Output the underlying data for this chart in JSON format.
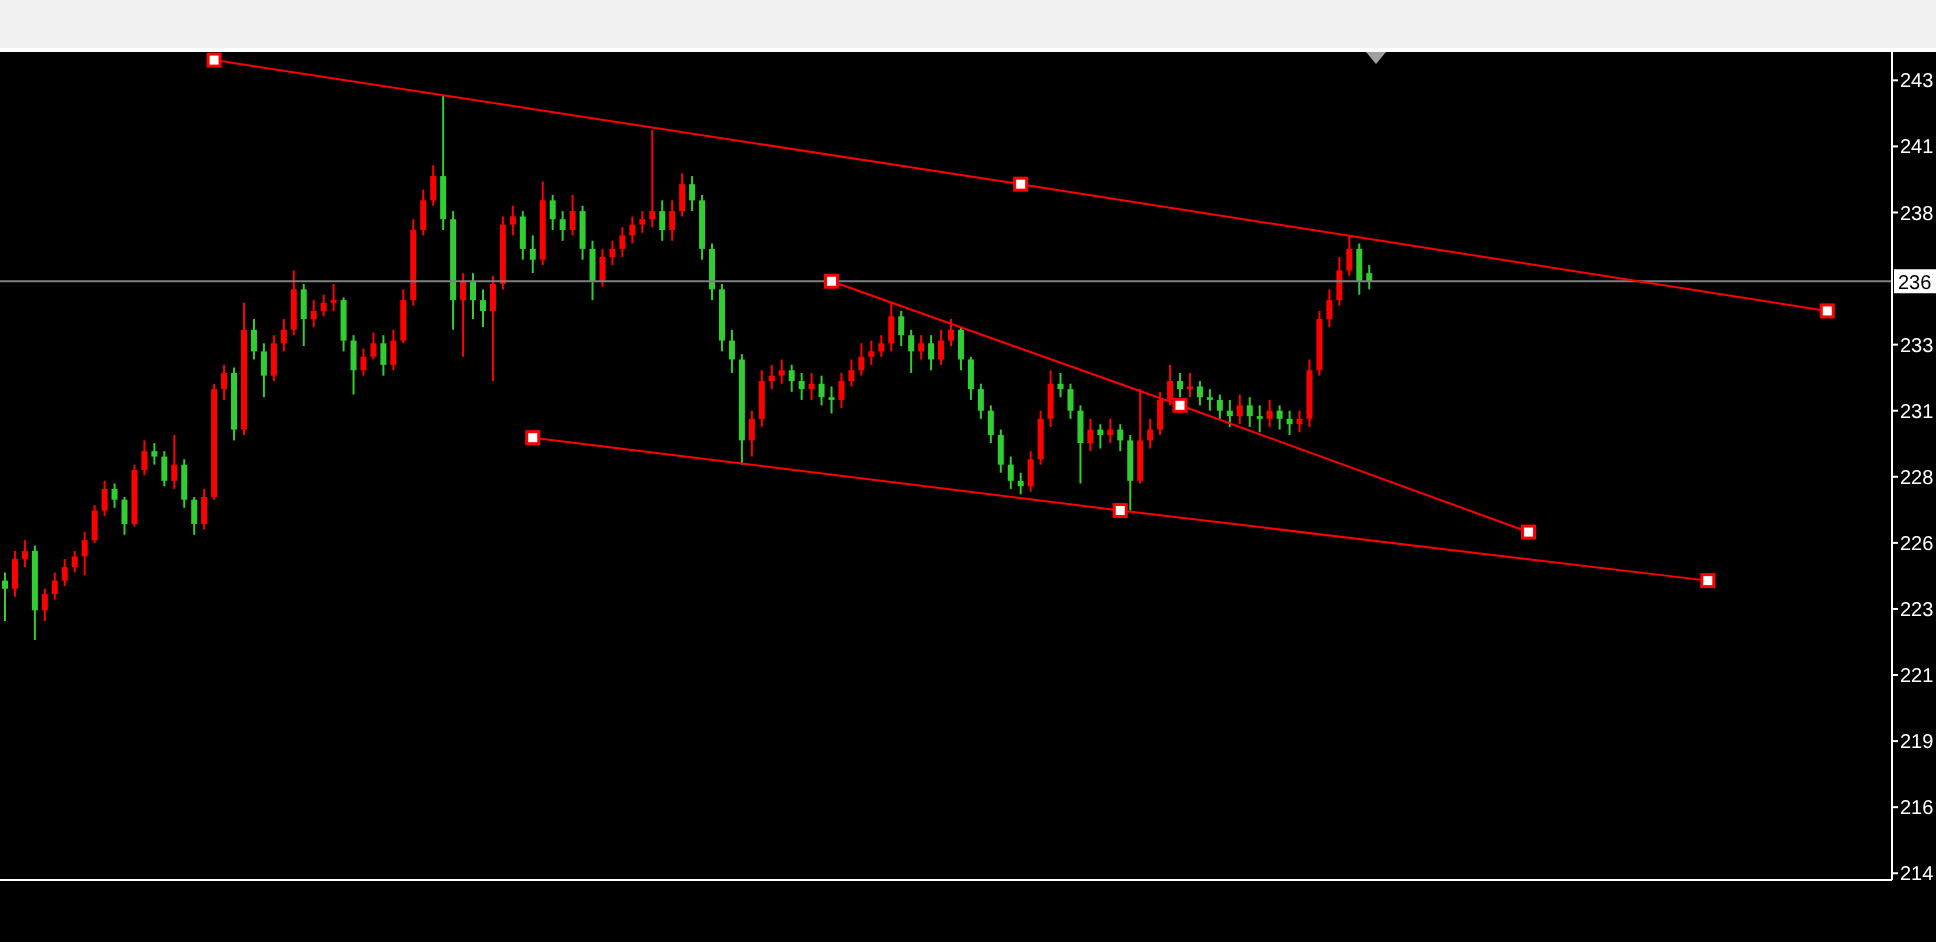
{
  "chart_data": {
    "type": "candlestick",
    "categories": [
      null,
      null,
      null,
      null,
      null,
      null,
      null,
      null,
      null,
      null,
      null,
      null,
      null,
      null,
      null,
      null,
      null,
      null,
      null,
      null,
      null,
      null,
      null,
      null,
      null,
      null,
      null,
      null,
      null,
      null,
      null,
      null,
      null,
      null,
      null,
      null,
      null,
      null,
      null,
      null,
      null,
      null,
      null,
      null,
      null,
      null,
      null,
      null,
      null,
      null,
      null,
      null,
      null,
      null,
      null,
      null,
      null,
      null,
      null,
      null,
      null,
      null,
      null,
      null,
      null,
      null,
      null,
      null,
      null,
      null,
      null,
      null,
      null,
      null,
      null,
      null,
      null,
      null,
      null,
      null,
      null,
      null,
      null,
      null,
      null,
      null,
      null,
      null,
      null,
      null,
      null,
      null,
      null,
      null,
      null,
      null,
      null,
      null,
      null,
      null,
      null,
      null,
      null,
      null,
      null,
      null,
      null,
      null,
      null,
      null,
      null,
      null,
      null,
      null,
      null,
      null,
      null,
      null,
      null,
      null,
      null,
      null,
      null,
      null,
      null,
      null,
      null,
      null,
      null,
      null,
      null,
      null,
      null,
      null,
      null,
      null,
      null,
      null,
      null,
      null,
      null,
      null,
      null,
      null,
      null,
      null,
      null,
      null,
      null,
      null,
      null,
      null,
      null,
      null,
      null,
      null,
      null,
      null,
      null,
      null,
      null,
      null,
      null,
      null,
      null,
      null,
      null,
      null,
      null,
      null,
      null,
      null,
      null,
      null,
      null,
      null,
      null,
      null,
      null,
      null,
      null,
      null,
      null,
      null,
      null,
      null,
      null,
      null,
      null,
      null
    ],
    "ohlc": [
      [
        224.5,
        224.8,
        223.0,
        224.2
      ],
      [
        224.2,
        225.6,
        223.9,
        225.3
      ],
      [
        225.3,
        226.0,
        225.0,
        225.6
      ],
      [
        225.6,
        225.8,
        222.3,
        223.4
      ],
      [
        223.4,
        224.2,
        223.0,
        224.0
      ],
      [
        224.0,
        224.8,
        223.8,
        224.5
      ],
      [
        224.5,
        225.3,
        224.3,
        225.0
      ],
      [
        225.0,
        225.6,
        224.8,
        225.4
      ],
      [
        225.4,
        226.3,
        224.7,
        226.0
      ],
      [
        226.0,
        227.3,
        225.9,
        227.1
      ],
      [
        227.1,
        228.2,
        226.9,
        227.9
      ],
      [
        227.9,
        228.1,
        227.2,
        227.5
      ],
      [
        227.5,
        227.6,
        226.2,
        226.6
      ],
      [
        226.6,
        228.8,
        226.5,
        228.6
      ],
      [
        228.6,
        229.7,
        228.4,
        229.3
      ],
      [
        229.3,
        229.6,
        228.8,
        229.1
      ],
      [
        229.1,
        229.3,
        228.0,
        228.2
      ],
      [
        228.2,
        229.9,
        227.9,
        228.8
      ],
      [
        228.8,
        229.0,
        227.2,
        227.5
      ],
      [
        227.5,
        227.6,
        226.2,
        226.6
      ],
      [
        226.6,
        227.9,
        226.4,
        227.6
      ],
      [
        227.6,
        231.8,
        227.5,
        231.6
      ],
      [
        231.6,
        232.5,
        231.2,
        232.2
      ],
      [
        232.2,
        232.4,
        229.7,
        230.1
      ],
      [
        230.1,
        234.8,
        229.9,
        233.8
      ],
      [
        233.8,
        234.2,
        232.7,
        233.0
      ],
      [
        233.0,
        233.3,
        231.3,
        232.1
      ],
      [
        232.1,
        233.6,
        231.9,
        233.3
      ],
      [
        233.3,
        234.2,
        233.0,
        233.8
      ],
      [
        233.8,
        236.0,
        233.6,
        235.3
      ],
      [
        235.3,
        235.5,
        233.2,
        234.2
      ],
      [
        234.2,
        234.9,
        233.9,
        234.5
      ],
      [
        234.5,
        235.1,
        234.3,
        234.8
      ],
      [
        234.8,
        235.5,
        234.5,
        234.9
      ],
      [
        234.9,
        235.0,
        233.0,
        233.4
      ],
      [
        233.4,
        233.6,
        231.4,
        232.3
      ],
      [
        232.3,
        233.1,
        232.1,
        232.8
      ],
      [
        232.8,
        233.7,
        232.7,
        233.3
      ],
      [
        233.3,
        233.6,
        232.1,
        232.5
      ],
      [
        232.5,
        233.8,
        232.3,
        233.4
      ],
      [
        233.4,
        235.3,
        233.3,
        234.9
      ],
      [
        234.9,
        237.9,
        234.7,
        237.5
      ],
      [
        237.5,
        239.0,
        237.3,
        238.6
      ],
      [
        238.6,
        239.9,
        238.4,
        239.5
      ],
      [
        239.5,
        242.5,
        237.5,
        237.9
      ],
      [
        237.9,
        238.2,
        233.8,
        234.9
      ],
      [
        234.9,
        235.9,
        232.8,
        235.6
      ],
      [
        235.6,
        235.9,
        234.2,
        234.9
      ],
      [
        234.9,
        235.3,
        233.9,
        234.5
      ],
      [
        234.5,
        235.8,
        231.9,
        235.5
      ],
      [
        235.5,
        238.0,
        235.3,
        237.7
      ],
      [
        237.7,
        238.4,
        237.3,
        238.0
      ],
      [
        238.0,
        238.2,
        236.4,
        236.8
      ],
      [
        236.8,
        237.3,
        235.9,
        236.4
      ],
      [
        236.4,
        239.3,
        236.2,
        238.6
      ],
      [
        238.6,
        238.8,
        237.5,
        237.9
      ],
      [
        237.9,
        238.2,
        237.1,
        237.5
      ],
      [
        237.5,
        238.8,
        237.3,
        238.2
      ],
      [
        238.2,
        238.4,
        236.4,
        236.8
      ],
      [
        236.8,
        237.1,
        234.9,
        235.6
      ],
      [
        235.6,
        236.8,
        235.4,
        236.5
      ],
      [
        236.5,
        237.1,
        236.2,
        236.8
      ],
      [
        236.8,
        237.6,
        236.5,
        237.3
      ],
      [
        237.3,
        238.0,
        237.0,
        237.7
      ],
      [
        237.7,
        238.2,
        237.4,
        237.9
      ],
      [
        237.9,
        241.2,
        237.6,
        238.2
      ],
      [
        238.2,
        238.6,
        237.1,
        237.5
      ],
      [
        237.5,
        238.6,
        237.1,
        238.2
      ],
      [
        238.2,
        239.6,
        238.0,
        239.2
      ],
      [
        239.2,
        239.5,
        238.2,
        238.6
      ],
      [
        238.6,
        238.8,
        236.4,
        236.8
      ],
      [
        236.8,
        237.0,
        234.9,
        235.3
      ],
      [
        235.3,
        235.5,
        233.0,
        233.4
      ],
      [
        233.4,
        233.8,
        232.2,
        232.7
      ],
      [
        232.7,
        232.9,
        228.8,
        229.7
      ],
      [
        229.7,
        230.8,
        229.1,
        230.5
      ],
      [
        230.5,
        232.3,
        230.2,
        231.9
      ],
      [
        231.9,
        232.5,
        231.6,
        232.1
      ],
      [
        232.1,
        232.7,
        231.8,
        232.3
      ],
      [
        232.3,
        232.5,
        231.5,
        231.9
      ],
      [
        231.9,
        232.2,
        231.2,
        231.6
      ],
      [
        231.6,
        232.2,
        231.2,
        231.8
      ],
      [
        231.8,
        232.1,
        231.0,
        231.3
      ],
      [
        231.3,
        231.7,
        230.7,
        231.2
      ],
      [
        231.2,
        232.2,
        230.9,
        231.9
      ],
      [
        231.9,
        232.7,
        231.7,
        232.3
      ],
      [
        232.3,
        233.3,
        232.1,
        232.8
      ],
      [
        232.8,
        233.4,
        232.5,
        233.0
      ],
      [
        233.0,
        233.6,
        232.8,
        233.3
      ],
      [
        233.3,
        234.8,
        233.0,
        234.3
      ],
      [
        234.3,
        234.5,
        233.2,
        233.6
      ],
      [
        233.6,
        233.8,
        232.2,
        233.0
      ],
      [
        233.0,
        233.6,
        232.7,
        233.3
      ],
      [
        233.3,
        233.6,
        232.3,
        232.7
      ],
      [
        232.7,
        233.8,
        232.5,
        233.4
      ],
      [
        233.4,
        234.2,
        233.2,
        233.8
      ],
      [
        233.8,
        233.9,
        232.3,
        232.7
      ],
      [
        232.7,
        232.8,
        231.2,
        231.6
      ],
      [
        231.6,
        231.8,
        230.5,
        230.8
      ],
      [
        230.8,
        231.0,
        229.6,
        229.9
      ],
      [
        229.9,
        230.1,
        228.5,
        228.8
      ],
      [
        228.8,
        229.1,
        227.9,
        228.2
      ],
      [
        228.2,
        228.5,
        227.7,
        228.0
      ],
      [
        228.0,
        229.3,
        227.8,
        229.0
      ],
      [
        229.0,
        230.8,
        228.8,
        230.5
      ],
      [
        230.5,
        232.3,
        230.2,
        231.8
      ],
      [
        231.8,
        232.2,
        231.3,
        231.6
      ],
      [
        231.6,
        231.8,
        230.5,
        230.8
      ],
      [
        230.8,
        231.0,
        228.1,
        229.6
      ],
      [
        229.6,
        230.5,
        229.3,
        230.1
      ],
      [
        230.1,
        230.3,
        229.4,
        229.9
      ],
      [
        229.9,
        230.5,
        229.6,
        230.1
      ],
      [
        230.1,
        230.3,
        229.3,
        229.7
      ],
      [
        229.7,
        229.9,
        227.1,
        228.2
      ],
      [
        228.2,
        231.6,
        228.1,
        229.7
      ],
      [
        229.7,
        230.5,
        229.4,
        230.1
      ],
      [
        230.1,
        231.5,
        229.9,
        231.2
      ],
      [
        231.2,
        232.5,
        231.0,
        231.9
      ],
      [
        231.9,
        232.2,
        231.3,
        231.6
      ],
      [
        231.6,
        232.2,
        231.3,
        231.7
      ],
      [
        231.7,
        231.9,
        231.0,
        231.3
      ],
      [
        231.3,
        231.6,
        230.8,
        231.2
      ],
      [
        231.2,
        231.4,
        230.5,
        230.8
      ],
      [
        230.8,
        231.2,
        230.2,
        230.6
      ],
      [
        230.6,
        231.4,
        230.3,
        231.0
      ],
      [
        231.0,
        231.3,
        230.2,
        230.6
      ],
      [
        230.6,
        231.0,
        230.0,
        230.5
      ],
      [
        230.5,
        231.2,
        230.2,
        230.8
      ],
      [
        230.8,
        231.0,
        230.1,
        230.5
      ],
      [
        230.5,
        230.8,
        229.9,
        230.3
      ],
      [
        230.3,
        230.8,
        230.0,
        230.5
      ],
      [
        230.5,
        232.7,
        230.2,
        232.3
      ],
      [
        232.3,
        234.5,
        232.1,
        234.2
      ],
      [
        234.2,
        235.3,
        233.9,
        234.9
      ],
      [
        234.9,
        236.5,
        234.7,
        236.0
      ],
      [
        236.0,
        237.3,
        235.8,
        236.8
      ],
      [
        236.8,
        237.0,
        235.1,
        235.6
      ],
      [
        235.9,
        236.2,
        235.3,
        235.6
      ],
      null,
      null,
      null,
      null,
      null,
      null,
      null,
      null,
      null,
      null,
      null,
      null,
      null,
      null,
      null,
      null,
      null,
      null,
      null,
      null,
      null,
      null,
      null,
      null,
      null,
      null,
      null,
      null,
      null,
      null,
      null,
      null,
      null,
      null,
      null,
      null,
      null,
      null,
      null,
      null,
      null,
      null,
      null,
      null,
      null,
      null,
      null,
      null,
      null,
      null,
      null,
      null
    ],
    "colors": [
      "#32cd32",
      "#ff0000",
      "#ff0000",
      "#32cd32",
      "#ff0000",
      "#ff0000",
      "#ff0000",
      "#ff0000",
      "#ff0000",
      "#ff0000",
      "#ff0000",
      "#32cd32",
      "#32cd32",
      "#ff0000",
      "#ff0000",
      "#32cd32",
      "#32cd32",
      "#ff0000",
      "#32cd32",
      "#32cd32",
      "#ff0000",
      "#ff0000",
      "#ff0000",
      "#32cd32",
      "#ff0000",
      "#32cd32",
      "#32cd32",
      "#ff0000",
      "#ff0000",
      "#ff0000",
      "#32cd32",
      "#ff0000",
      "#ff0000",
      "#ff0000",
      "#32cd32",
      "#32cd32",
      "#ff0000",
      "#ff0000",
      "#32cd32",
      "#ff0000",
      "#ff0000",
      "#ff0000",
      "#ff0000",
      "#ff0000",
      "#32cd32",
      "#32cd32",
      "#ff0000",
      "#32cd32",
      "#32cd32",
      "#ff0000",
      "#ff0000",
      "#ff0000",
      "#32cd32",
      "#32cd32",
      "#ff0000",
      "#32cd32",
      "#32cd32",
      "#ff0000",
      "#32cd32",
      "#32cd32",
      "#ff0000",
      "#ff0000",
      "#ff0000",
      "#ff0000",
      "#ff0000",
      "#ff0000",
      "#32cd32",
      "#ff0000",
      "#ff0000",
      "#32cd32",
      "#32cd32",
      "#32cd32",
      "#32cd32",
      "#32cd32",
      "#32cd32",
      "#ff0000",
      "#ff0000",
      "#ff0000",
      "#ff0000",
      "#32cd32",
      "#32cd32",
      "#ff0000",
      "#32cd32",
      "#32cd32",
      "#ff0000",
      "#ff0000",
      "#ff0000",
      "#ff0000",
      "#ff0000",
      "#ff0000",
      "#32cd32",
      "#32cd32",
      "#ff0000",
      "#32cd32",
      "#ff0000",
      "#ff0000",
      "#32cd32",
      "#32cd32",
      "#32cd32",
      "#32cd32",
      "#32cd32",
      "#32cd32",
      "#32cd32",
      "#ff0000",
      "#ff0000",
      "#ff0000",
      "#32cd32",
      "#32cd32",
      "#32cd32",
      "#ff0000",
      "#32cd32",
      "#ff0000",
      "#32cd32",
      "#32cd32",
      "#ff0000",
      "#ff0000",
      "#ff0000",
      "#ff0000",
      "#32cd32",
      "#ff0000",
      "#32cd32",
      "#32cd32",
      "#32cd32",
      "#32cd32",
      "#ff0000",
      "#32cd32",
      "#32cd32",
      "#ff0000",
      "#32cd32",
      "#32cd32",
      "#ff0000",
      "#ff0000",
      "#ff0000",
      "#ff0000",
      "#ff0000",
      "#ff0000",
      "#32cd32",
      "#32cd32",
      null,
      null,
      null,
      null,
      null,
      null,
      null,
      null,
      null,
      null,
      null,
      null,
      null,
      null,
      null,
      null,
      null,
      null,
      null,
      null,
      null,
      null,
      null,
      null,
      null,
      null,
      null,
      null,
      null,
      null,
      null,
      null,
      null,
      null,
      null,
      null,
      null,
      null,
      null,
      null,
      null,
      null,
      null,
      null,
      null,
      null,
      null,
      null,
      null,
      null,
      null,
      null
    ],
    "series": [
      {
        "type": "line",
        "color": "#ff0000",
        "values": [
          null,
          null,
          null,
          null,
          null,
          null,
          null,
          null,
          null,
          null,
          null,
          null,
          null,
          null,
          null,
          null,
          null,
          null,
          null,
          null,
          null,
          243.8,
          null,
          null,
          null,
          null,
          null,
          null,
          null,
          null,
          null,
          null,
          null,
          null,
          null,
          null,
          null,
          null,
          null,
          null,
          null,
          null,
          null,
          null,
          null,
          null,
          null,
          null,
          null,
          null,
          null,
          null,
          null,
          null,
          null,
          null,
          null,
          null,
          null,
          null,
          null,
          null,
          null,
          null,
          null,
          null,
          null,
          null,
          null,
          null,
          null,
          null,
          null,
          null,
          null,
          null,
          null,
          null,
          null,
          null,
          null,
          null,
          null,
          null,
          null,
          null,
          null,
          null,
          null,
          null,
          null,
          null,
          null,
          null,
          null,
          null,
          null,
          null,
          null,
          null,
          null,
          null,
          239.2,
          null,
          null,
          null,
          null,
          null,
          null,
          null,
          null,
          null,
          null,
          null,
          null,
          null,
          null,
          null,
          null,
          null,
          null,
          null,
          null,
          null,
          null,
          null,
          null,
          null,
          null,
          null,
          null,
          null,
          null,
          null,
          null,
          null,
          null,
          null,
          null,
          null,
          null,
          null,
          null,
          null,
          null,
          null,
          null,
          null,
          null,
          null,
          null,
          null,
          null,
          null,
          null,
          null,
          null,
          null,
          null,
          null,
          null,
          null,
          null,
          null,
          null,
          null,
          null,
          null,
          null,
          null,
          null,
          null,
          null,
          null,
          null,
          null,
          null,
          null,
          null,
          null,
          null,
          null,
          null,
          234.5,
          null,
          null,
          null,
          null,
          null,
          null
        ]
      },
      {
        "type": "line",
        "color": "#ff0000",
        "values": [
          null,
          null,
          null,
          null,
          null,
          null,
          null,
          null,
          null,
          null,
          null,
          null,
          null,
          null,
          null,
          null,
          null,
          null,
          null,
          null,
          null,
          null,
          null,
          null,
          null,
          null,
          null,
          null,
          null,
          null,
          null,
          null,
          null,
          null,
          null,
          null,
          null,
          null,
          null,
          null,
          null,
          null,
          null,
          null,
          null,
          null,
          null,
          null,
          null,
          null,
          null,
          null,
          null,
          null,
          null,
          null,
          null,
          null,
          null,
          null,
          null,
          null,
          null,
          null,
          null,
          null,
          null,
          null,
          null,
          null,
          null,
          null,
          null,
          null,
          null,
          null,
          null,
          null,
          null,
          null,
          null,
          null,
          null,
          235.6,
          null,
          null,
          null,
          null,
          null,
          null,
          null,
          null,
          null,
          null,
          null,
          null,
          null,
          null,
          null,
          null,
          null,
          null,
          null,
          null,
          null,
          null,
          null,
          null,
          null,
          null,
          null,
          null,
          null,
          null,
          null,
          null,
          null,
          null,
          231.0,
          null,
          null,
          null,
          null,
          null,
          null,
          null,
          null,
          null,
          null,
          null,
          null,
          null,
          null,
          null,
          null,
          null,
          null,
          null,
          null,
          null,
          null,
          null,
          null,
          null,
          null,
          null,
          null,
          null,
          null,
          null,
          null,
          null,
          null,
          226.3,
          null,
          null,
          null,
          null,
          null,
          null,
          null,
          null,
          null,
          null,
          null,
          null,
          null,
          null,
          null,
          null,
          null,
          null,
          null,
          null,
          null,
          null,
          null,
          null,
          null,
          null,
          null,
          null,
          null,
          null,
          null,
          null,
          null,
          null,
          null,
          null
        ]
      },
      {
        "type": "line",
        "color": "#ff0000",
        "values": [
          null,
          null,
          null,
          null,
          null,
          null,
          null,
          null,
          null,
          null,
          null,
          null,
          null,
          null,
          null,
          null,
          null,
          null,
          null,
          null,
          null,
          null,
          null,
          null,
          null,
          null,
          null,
          null,
          null,
          null,
          null,
          null,
          null,
          null,
          null,
          null,
          null,
          null,
          null,
          null,
          null,
          null,
          null,
          null,
          null,
          null,
          null,
          null,
          null,
          null,
          null,
          null,
          null,
          229.8,
          null,
          null,
          null,
          null,
          null,
          null,
          null,
          null,
          null,
          null,
          null,
          null,
          null,
          null,
          null,
          null,
          null,
          null,
          null,
          null,
          null,
          null,
          null,
          null,
          null,
          null,
          null,
          null,
          null,
          null,
          null,
          null,
          null,
          null,
          null,
          null,
          null,
          null,
          null,
          null,
          null,
          null,
          null,
          null,
          null,
          null,
          null,
          null,
          null,
          null,
          null,
          null,
          null,
          null,
          null,
          null,
          null,
          null,
          227.1,
          null,
          null,
          null,
          null,
          null,
          null,
          null,
          null,
          null,
          null,
          null,
          null,
          null,
          null,
          null,
          null,
          null,
          null,
          null,
          null,
          null,
          null,
          null,
          null,
          null,
          null,
          null,
          null,
          null,
          null,
          null,
          null,
          null,
          null,
          null,
          null,
          null,
          null,
          null,
          null,
          null,
          null,
          null,
          null,
          null,
          null,
          null,
          null,
          null,
          null,
          null,
          null,
          null,
          null,
          null,
          null,
          null,
          null,
          224.5,
          null,
          null,
          null,
          null,
          null,
          null,
          null,
          null,
          null,
          null,
          null,
          null,
          null,
          null,
          null,
          null,
          null,
          null
        ]
      }
    ],
    "marker": "square",
    "ylim": [
      213.4,
      244.1
    ],
    "yticks": [
      {
        "value": 243.05,
        "label": "243"
      },
      {
        "value": 240.6,
        "label": "241"
      },
      {
        "value": 238.15,
        "label": "238"
      },
      {
        "value": 233.25,
        "label": "233"
      },
      {
        "value": 230.8,
        "label": "231"
      },
      {
        "value": 228.35,
        "label": "228"
      },
      {
        "value": 225.9,
        "label": "226"
      },
      {
        "value": 223.45,
        "label": "223"
      },
      {
        "value": 221.0,
        "label": "221"
      },
      {
        "value": 218.55,
        "label": "219"
      },
      {
        "value": 216.1,
        "label": "216"
      },
      {
        "value": 213.65,
        "label": "214"
      }
    ],
    "tick_labels": "y",
    "ref_lines": [
      {
        "axis": "y",
        "value": 235.6,
        "label": "236",
        "color": "#808080"
      }
    ]
  }
}
